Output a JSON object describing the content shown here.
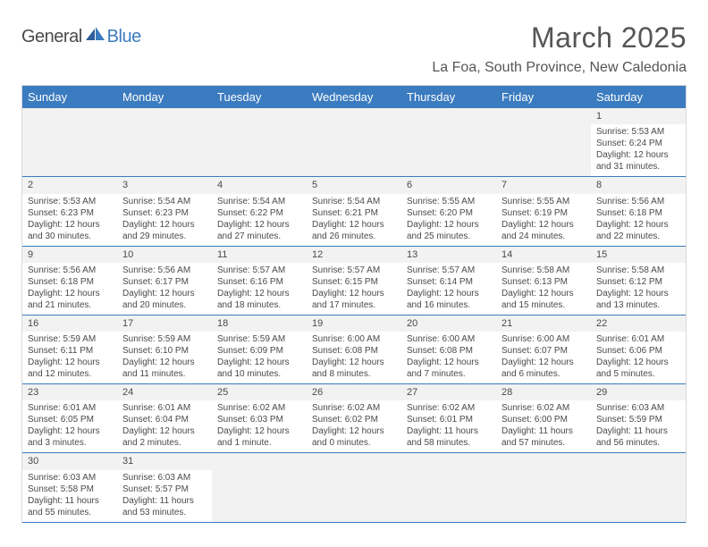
{
  "logo": {
    "word1": "General",
    "word2": "Blue"
  },
  "title": "March 2025",
  "location": "La Foa, South Province, New Caledonia",
  "colors": {
    "brand_blue": "#3b7bbf",
    "band_gray": "#f2f2f2",
    "rule_gray": "#d9d9d9",
    "text": "#4a4a4a"
  },
  "day_headers": [
    "Sunday",
    "Monday",
    "Tuesday",
    "Wednesday",
    "Thursday",
    "Friday",
    "Saturday"
  ],
  "weeks": [
    [
      null,
      null,
      null,
      null,
      null,
      null,
      {
        "n": "1",
        "sr": "5:53 AM",
        "ss": "6:24 PM",
        "dl": "12 hours and 31 minutes."
      }
    ],
    [
      {
        "n": "2",
        "sr": "5:53 AM",
        "ss": "6:23 PM",
        "dl": "12 hours and 30 minutes."
      },
      {
        "n": "3",
        "sr": "5:54 AM",
        "ss": "6:23 PM",
        "dl": "12 hours and 29 minutes."
      },
      {
        "n": "4",
        "sr": "5:54 AM",
        "ss": "6:22 PM",
        "dl": "12 hours and 27 minutes."
      },
      {
        "n": "5",
        "sr": "5:54 AM",
        "ss": "6:21 PM",
        "dl": "12 hours and 26 minutes."
      },
      {
        "n": "6",
        "sr": "5:55 AM",
        "ss": "6:20 PM",
        "dl": "12 hours and 25 minutes."
      },
      {
        "n": "7",
        "sr": "5:55 AM",
        "ss": "6:19 PM",
        "dl": "12 hours and 24 minutes."
      },
      {
        "n": "8",
        "sr": "5:56 AM",
        "ss": "6:18 PM",
        "dl": "12 hours and 22 minutes."
      }
    ],
    [
      {
        "n": "9",
        "sr": "5:56 AM",
        "ss": "6:18 PM",
        "dl": "12 hours and 21 minutes."
      },
      {
        "n": "10",
        "sr": "5:56 AM",
        "ss": "6:17 PM",
        "dl": "12 hours and 20 minutes."
      },
      {
        "n": "11",
        "sr": "5:57 AM",
        "ss": "6:16 PM",
        "dl": "12 hours and 18 minutes."
      },
      {
        "n": "12",
        "sr": "5:57 AM",
        "ss": "6:15 PM",
        "dl": "12 hours and 17 minutes."
      },
      {
        "n": "13",
        "sr": "5:57 AM",
        "ss": "6:14 PM",
        "dl": "12 hours and 16 minutes."
      },
      {
        "n": "14",
        "sr": "5:58 AM",
        "ss": "6:13 PM",
        "dl": "12 hours and 15 minutes."
      },
      {
        "n": "15",
        "sr": "5:58 AM",
        "ss": "6:12 PM",
        "dl": "12 hours and 13 minutes."
      }
    ],
    [
      {
        "n": "16",
        "sr": "5:59 AM",
        "ss": "6:11 PM",
        "dl": "12 hours and 12 minutes."
      },
      {
        "n": "17",
        "sr": "5:59 AM",
        "ss": "6:10 PM",
        "dl": "12 hours and 11 minutes."
      },
      {
        "n": "18",
        "sr": "5:59 AM",
        "ss": "6:09 PM",
        "dl": "12 hours and 10 minutes."
      },
      {
        "n": "19",
        "sr": "6:00 AM",
        "ss": "6:08 PM",
        "dl": "12 hours and 8 minutes."
      },
      {
        "n": "20",
        "sr": "6:00 AM",
        "ss": "6:08 PM",
        "dl": "12 hours and 7 minutes."
      },
      {
        "n": "21",
        "sr": "6:00 AM",
        "ss": "6:07 PM",
        "dl": "12 hours and 6 minutes."
      },
      {
        "n": "22",
        "sr": "6:01 AM",
        "ss": "6:06 PM",
        "dl": "12 hours and 5 minutes."
      }
    ],
    [
      {
        "n": "23",
        "sr": "6:01 AM",
        "ss": "6:05 PM",
        "dl": "12 hours and 3 minutes."
      },
      {
        "n": "24",
        "sr": "6:01 AM",
        "ss": "6:04 PM",
        "dl": "12 hours and 2 minutes."
      },
      {
        "n": "25",
        "sr": "6:02 AM",
        "ss": "6:03 PM",
        "dl": "12 hours and 1 minute."
      },
      {
        "n": "26",
        "sr": "6:02 AM",
        "ss": "6:02 PM",
        "dl": "12 hours and 0 minutes."
      },
      {
        "n": "27",
        "sr": "6:02 AM",
        "ss": "6:01 PM",
        "dl": "11 hours and 58 minutes."
      },
      {
        "n": "28",
        "sr": "6:02 AM",
        "ss": "6:00 PM",
        "dl": "11 hours and 57 minutes."
      },
      {
        "n": "29",
        "sr": "6:03 AM",
        "ss": "5:59 PM",
        "dl": "11 hours and 56 minutes."
      }
    ],
    [
      {
        "n": "30",
        "sr": "6:03 AM",
        "ss": "5:58 PM",
        "dl": "11 hours and 55 minutes."
      },
      {
        "n": "31",
        "sr": "6:03 AM",
        "ss": "5:57 PM",
        "dl": "11 hours and 53 minutes."
      },
      null,
      null,
      null,
      null,
      null
    ]
  ],
  "labels": {
    "sunrise": "Sunrise: ",
    "sunset": "Sunset: ",
    "daylight": "Daylight: "
  }
}
